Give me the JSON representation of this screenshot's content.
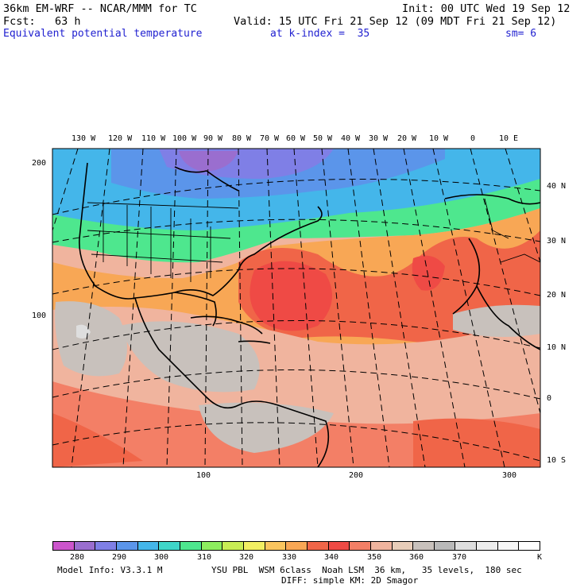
{
  "header": {
    "model": "36km EM-WRF -- NCAR/MMM for TC",
    "init": "Init: 00 UTC Wed 19 Sep 12",
    "fcst": "Fcst:   63 h",
    "valid": "Valid: 15 UTC Fri 21 Sep 12 (09 MDT Fri 21 Sep 12)",
    "field": "Equivalent potential temperature",
    "level": "at k-index =  35",
    "smoothing": "sm= 6"
  },
  "map": {
    "top_lon_labels": [
      "130 W",
      "120 W",
      "110 W",
      "100 W",
      "90 W",
      "80 W",
      "70 W",
      "60 W",
      "50 W",
      "40 W",
      "30 W",
      "20 W",
      "10 W",
      "0",
      "10 E"
    ],
    "right_lat_labels": [
      "40 N",
      "30 N",
      "20 N",
      "10 N",
      "0",
      "10 S"
    ],
    "left_grid_labels": [
      "200",
      "100"
    ],
    "bottom_grid_labels": [
      "100",
      "200",
      "300"
    ]
  },
  "colorbar": {
    "colors": [
      "#cc55cc",
      "#9a6ecf",
      "#7f7fe6",
      "#5b95ea",
      "#44b6ea",
      "#3fd6c9",
      "#4ee78e",
      "#8ded5e",
      "#c9ed55",
      "#f2ef62",
      "#fac55e",
      "#f8a755",
      "#f06548",
      "#ef4a45",
      "#f37f66",
      "#f0b49e",
      "#e8cdb9",
      "#c8c1bc",
      "#b9b9b9",
      "#dedede",
      "#ededed",
      "#f7f7f7",
      "#ffffff"
    ],
    "tick_labels": [
      "280",
      "290",
      "300",
      "310",
      "320",
      "330",
      "340",
      "350",
      "360",
      "370"
    ],
    "unit": "K"
  },
  "footer": {
    "model_info": "Model Info: V3.3.1 M",
    "physics": "YSU PBL  WSM 6class  Noah LSM  36 km,   35 levels,  180 sec",
    "diffusion": "DIFF: simple KM: 2D Smagor"
  }
}
